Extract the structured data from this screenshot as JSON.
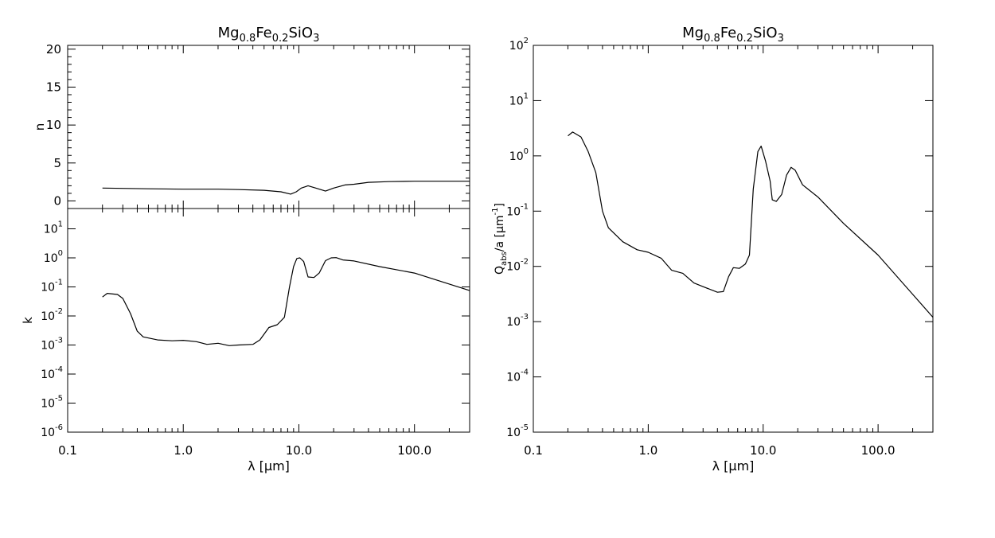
{
  "chart_data": [
    {
      "id": "n",
      "type": "line",
      "title": {
        "base": "Mg",
        "s1": "0.8",
        "m1": "Fe",
        "s2": "0.2",
        "m2": "SiO",
        "s3": "3"
      },
      "xlabel": {
        "pre": "λ [",
        "mu": "μ",
        "post": "m]"
      },
      "ylabel": "n",
      "xscale": "log",
      "yscale": "linear",
      "xlim": [
        0.1,
        300
      ],
      "ylim": [
        -1,
        20.5
      ],
      "x_ticks": [
        "0.1",
        "1.0",
        "10.0",
        "100.0"
      ],
      "y_ticks": [
        "0",
        "5",
        "10",
        "15",
        "20"
      ],
      "series": [
        {
          "x": [
            0.2,
            0.5,
            1,
            2,
            3,
            5,
            7,
            8.5,
            9.5,
            10.5,
            12,
            14,
            17,
            20,
            25,
            30,
            40,
            60,
            100,
            300
          ],
          "y": [
            1.7,
            1.6,
            1.55,
            1.55,
            1.5,
            1.4,
            1.2,
            0.9,
            1.2,
            1.7,
            2.0,
            1.7,
            1.3,
            1.7,
            2.1,
            2.2,
            2.45,
            2.55,
            2.6,
            2.6
          ]
        }
      ]
    },
    {
      "id": "k",
      "type": "line",
      "ylabel": "k",
      "xscale": "log",
      "yscale": "log",
      "xlim": [
        0.1,
        300
      ],
      "ylim": [
        1e-06,
        50
      ],
      "x_ticks": [
        "0.1",
        "1.0",
        "10.0",
        "100.0"
      ],
      "y_ticks": [
        {
          "base": "10",
          "exp": "1"
        },
        {
          "base": "10",
          "exp": "0"
        },
        {
          "base": "10",
          "exp": "-1"
        },
        {
          "base": "10",
          "exp": "-2"
        },
        {
          "base": "10",
          "exp": "-3"
        },
        {
          "base": "10",
          "exp": "-4"
        },
        {
          "base": "10",
          "exp": "-5"
        },
        {
          "base": "10",
          "exp": "-6"
        }
      ],
      "series": [
        {
          "x": [
            0.2,
            0.22,
            0.27,
            0.3,
            0.35,
            0.4,
            0.45,
            0.6,
            0.8,
            1.0,
            1.3,
            1.6,
            2.0,
            2.5,
            3.0,
            4.0,
            4.6,
            5.5,
            6.5,
            7.5,
            8.3,
            9.0,
            9.6,
            10.2,
            11,
            12,
            13.5,
            15,
            17,
            19,
            21,
            24,
            30,
            50,
            100,
            300
          ],
          "y": [
            0.045,
            0.06,
            0.055,
            0.04,
            0.012,
            0.003,
            0.0019,
            0.0015,
            0.0014,
            0.00145,
            0.0013,
            0.00105,
            0.00115,
            0.00095,
            0.001,
            0.00105,
            0.0015,
            0.004,
            0.005,
            0.009,
            0.1,
            0.5,
            0.95,
            1.0,
            0.75,
            0.22,
            0.21,
            0.3,
            0.8,
            1.0,
            1.02,
            0.85,
            0.78,
            0.5,
            0.3,
            0.075
          ]
        }
      ]
    },
    {
      "id": "qabs",
      "type": "line",
      "title": {
        "base": "Mg",
        "s1": "0.8",
        "m1": "Fe",
        "s2": "0.2",
        "m2": "SiO",
        "s3": "3"
      },
      "xlabel": {
        "pre": "λ [",
        "mu": "μ",
        "post": "m]"
      },
      "ylabel": {
        "q": "Q",
        "sub": "abs",
        "mid": "/a [",
        "mu": "μ",
        "m": "m",
        "exp": "-1",
        "close": "]"
      },
      "xscale": "log",
      "yscale": "log",
      "xlim": [
        0.1,
        300
      ],
      "ylim": [
        1e-05,
        100
      ],
      "x_ticks": [
        "0.1",
        "1.0",
        "10.0",
        "100.0"
      ],
      "y_ticks": [
        {
          "base": "10",
          "exp": "2"
        },
        {
          "base": "10",
          "exp": "1"
        },
        {
          "base": "10",
          "exp": "0"
        },
        {
          "base": "10",
          "exp": "-1"
        },
        {
          "base": "10",
          "exp": "-2"
        },
        {
          "base": "10",
          "exp": "-3"
        },
        {
          "base": "10",
          "exp": "-4"
        },
        {
          "base": "10",
          "exp": "-5"
        }
      ],
      "series": [
        {
          "x": [
            0.2,
            0.22,
            0.26,
            0.3,
            0.35,
            0.4,
            0.45,
            0.6,
            0.8,
            1.0,
            1.3,
            1.6,
            2.0,
            2.5,
            3.0,
            4.0,
            4.5,
            5.0,
            5.5,
            6.2,
            7.0,
            7.6,
            8.2,
            9.0,
            9.6,
            10.5,
            11.5,
            12,
            13,
            14.5,
            16,
            17.5,
            19,
            22,
            30,
            50,
            100,
            300
          ],
          "y": [
            2.3,
            2.7,
            2.2,
            1.2,
            0.5,
            0.1,
            0.05,
            0.028,
            0.02,
            0.018,
            0.014,
            0.0085,
            0.0075,
            0.005,
            0.0043,
            0.0034,
            0.0035,
            0.0065,
            0.0095,
            0.0092,
            0.011,
            0.016,
            0.25,
            1.2,
            1.5,
            0.8,
            0.35,
            0.16,
            0.15,
            0.2,
            0.45,
            0.62,
            0.55,
            0.3,
            0.18,
            0.06,
            0.016,
            0.0012
          ]
        }
      ]
    }
  ]
}
